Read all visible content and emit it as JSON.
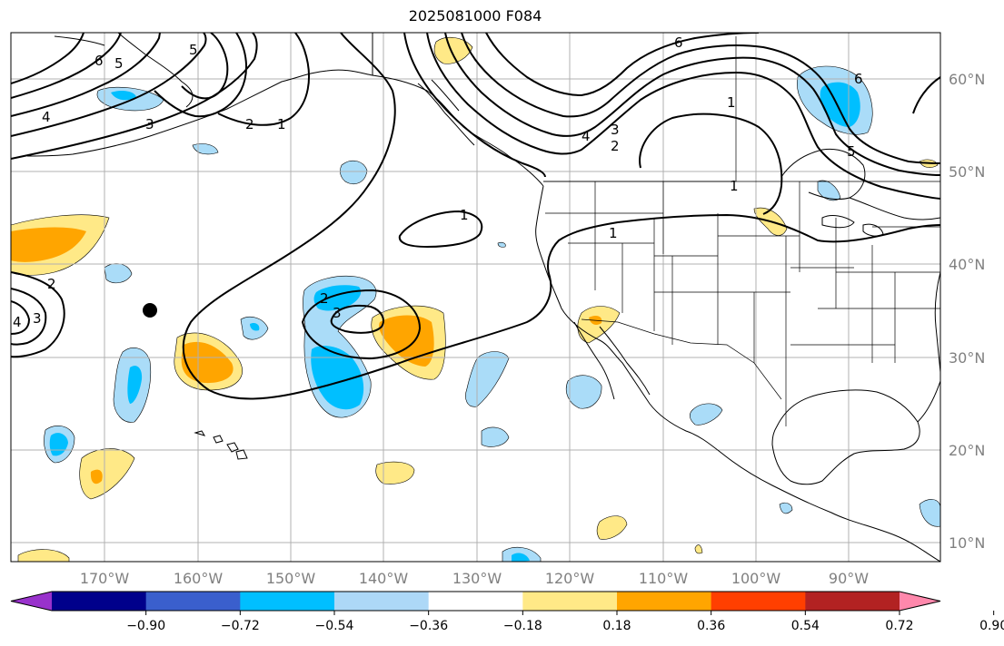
{
  "title": "2025081000 F084",
  "map": {
    "lat_labels": [
      "60°N",
      "50°N",
      "40°N",
      "30°N",
      "20°N",
      "10°N"
    ],
    "lon_labels": [
      "170°W",
      "160°W",
      "150°W",
      "140°W",
      "130°W",
      "120°W",
      "110°W",
      "100°W",
      "90°W"
    ],
    "contour_labels": [
      "6",
      "5",
      "5",
      "4",
      "3",
      "2",
      "1",
      "1",
      "1",
      "1",
      "2",
      "3",
      "4",
      "3",
      "2",
      "6",
      "4",
      "3",
      "2",
      "6",
      "5",
      "1"
    ],
    "marker": {
      "lon": -165.5,
      "lat": 35
    }
  },
  "colorbar": {
    "ticks": [
      "−0.90",
      "−0.72",
      "−0.54",
      "−0.36",
      "−0.18",
      "0.18",
      "0.36",
      "0.54",
      "0.72",
      "0.90"
    ],
    "colors": [
      "#9932cc",
      "#00008b",
      "#3a5fcd",
      "#00bfff",
      "#add8f7",
      "#ffffff",
      "#ffe987",
      "#ffa500",
      "#ff3f00",
      "#b22222",
      "#ff88ac"
    ]
  },
  "colors": {
    "neg_light": "#aadcf8",
    "neg_mid": "#00bfff",
    "pos_light": "#ffe987",
    "pos_mid": "#ffa500"
  }
}
